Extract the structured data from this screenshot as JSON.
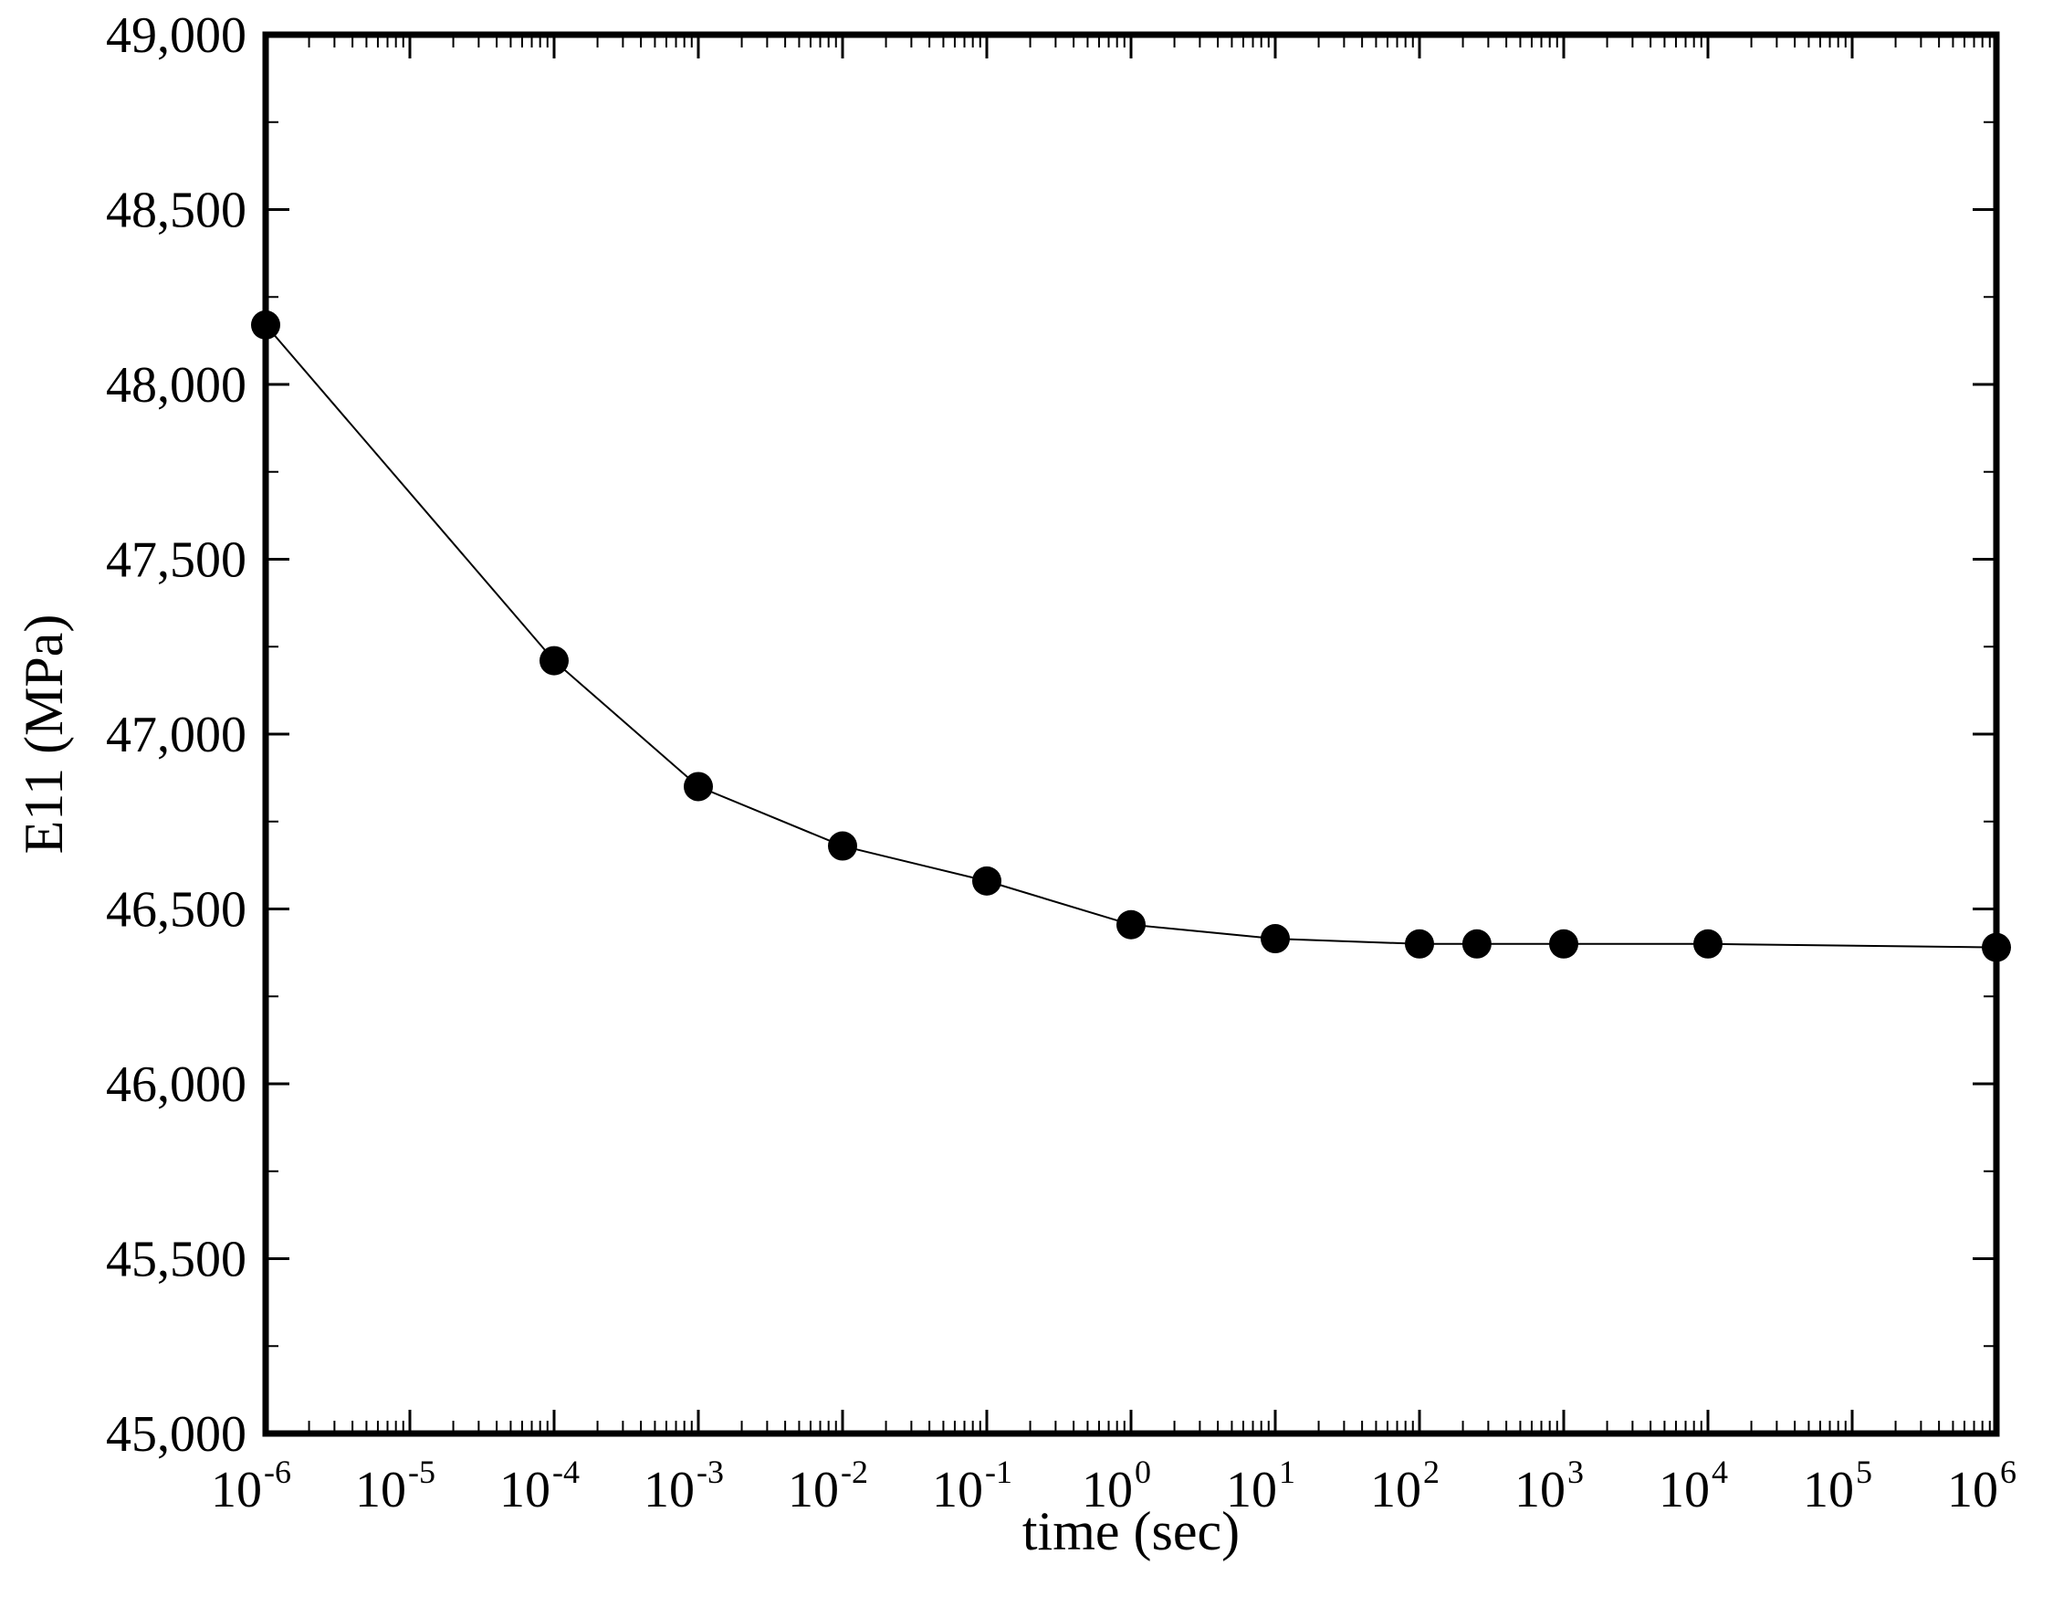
{
  "chart_data": {
    "type": "line",
    "xlabel": "time (sec)",
    "ylabel": "E11 (MPa)",
    "x_scale": "log",
    "xlim": [
      1e-06,
      1000000.0
    ],
    "ylim": [
      45000,
      49000
    ],
    "x_ticks": [
      {
        "value": 1e-06,
        "base": "10",
        "exp": "-6"
      },
      {
        "value": 1e-05,
        "base": "10",
        "exp": "-5"
      },
      {
        "value": 0.0001,
        "base": "10",
        "exp": "-4"
      },
      {
        "value": 0.001,
        "base": "10",
        "exp": "-3"
      },
      {
        "value": 0.01,
        "base": "10",
        "exp": "-2"
      },
      {
        "value": 0.1,
        "base": "10",
        "exp": "-1"
      },
      {
        "value": 1.0,
        "base": "10",
        "exp": "0"
      },
      {
        "value": 10.0,
        "base": "10",
        "exp": "1"
      },
      {
        "value": 100.0,
        "base": "10",
        "exp": "2"
      },
      {
        "value": 1000.0,
        "base": "10",
        "exp": "3"
      },
      {
        "value": 10000.0,
        "base": "10",
        "exp": "4"
      },
      {
        "value": 100000.0,
        "base": "10",
        "exp": "5"
      },
      {
        "value": 1000000.0,
        "base": "10",
        "exp": "6"
      }
    ],
    "y_ticks": [
      {
        "value": 45000,
        "label": "45,000"
      },
      {
        "value": 45500,
        "label": "45,500"
      },
      {
        "value": 46000,
        "label": "46,000"
      },
      {
        "value": 46500,
        "label": "46,500"
      },
      {
        "value": 47000,
        "label": "47,000"
      },
      {
        "value": 47500,
        "label": "47,500"
      },
      {
        "value": 48000,
        "label": "48,000"
      },
      {
        "value": 48500,
        "label": "48,500"
      },
      {
        "value": 49000,
        "label": "49,000"
      }
    ],
    "grid": false,
    "legend": "none",
    "series": [
      {
        "marker": "filled-circle",
        "color": "#000000",
        "x": [
          1e-06,
          0.0001,
          0.001,
          0.01,
          0.1,
          1,
          10,
          100,
          250,
          1000,
          10000,
          1000000
        ],
        "y": [
          48170,
          47210,
          46850,
          46680,
          46580,
          46455,
          46415,
          46400,
          46400,
          46400,
          46400,
          46390
        ]
      }
    ]
  }
}
